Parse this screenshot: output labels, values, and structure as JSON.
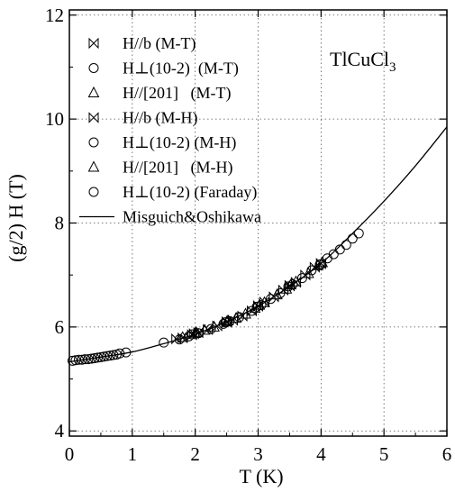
{
  "chart_data": {
    "type": "scatter",
    "title": "",
    "annotation": "TlCuCl3",
    "annotation_parts": {
      "base": "TlCuCl",
      "sub": "3"
    },
    "xlabel": "T (K)",
    "ylabel": "(g/2) H (T)",
    "xlim": [
      0,
      6
    ],
    "ylim": [
      3.9,
      12.1
    ],
    "x_ticks": [
      "0",
      "1",
      "2",
      "3",
      "4",
      "5",
      "6"
    ],
    "y_ticks": [
      "4",
      "6",
      "8",
      "10",
      "12"
    ],
    "grid": "dotted",
    "legend_position": "top-left",
    "series": [
      {
        "name": "H//b (M-T)",
        "marker": "bowtie",
        "points": [
          [
            1.7,
            5.77
          ],
          [
            1.8,
            5.79
          ],
          [
            1.95,
            5.85
          ],
          [
            2.05,
            5.89
          ],
          [
            2.2,
            5.95
          ],
          [
            2.35,
            6.02
          ],
          [
            2.5,
            6.09
          ],
          [
            2.6,
            6.13
          ],
          [
            2.75,
            6.21
          ],
          [
            2.9,
            6.31
          ],
          [
            3.0,
            6.4
          ],
          [
            3.1,
            6.48
          ],
          [
            3.25,
            6.58
          ],
          [
            3.4,
            6.71
          ],
          [
            3.5,
            6.8
          ],
          [
            3.6,
            6.86
          ],
          [
            3.75,
            7.0
          ],
          [
            3.9,
            7.15
          ],
          [
            4.0,
            7.22
          ]
        ]
      },
      {
        "name": "H⊥(10-2)  (M-T)",
        "marker": "circle",
        "points": [
          [
            1.75,
            5.76
          ],
          [
            1.9,
            5.82
          ],
          [
            2.05,
            5.88
          ],
          [
            2.25,
            5.96
          ],
          [
            2.45,
            6.06
          ],
          [
            2.55,
            6.11
          ],
          [
            2.7,
            6.19
          ],
          [
            2.9,
            6.31
          ],
          [
            3.05,
            6.42
          ],
          [
            3.2,
            6.54
          ],
          [
            3.35,
            6.65
          ],
          [
            3.55,
            6.82
          ],
          [
            3.7,
            6.94
          ],
          [
            3.85,
            7.09
          ],
          [
            4.0,
            7.21
          ]
        ]
      },
      {
        "name": "H//[201]   (M-T)",
        "marker": "triangle",
        "points": [
          [
            1.8,
            5.8
          ],
          [
            2.0,
            5.88
          ],
          [
            2.15,
            5.94
          ],
          [
            2.3,
            6.0
          ],
          [
            2.5,
            6.1
          ],
          [
            2.65,
            6.17
          ],
          [
            2.8,
            6.25
          ],
          [
            2.95,
            6.36
          ],
          [
            3.1,
            6.47
          ],
          [
            3.3,
            6.62
          ],
          [
            3.45,
            6.73
          ],
          [
            3.6,
            6.87
          ],
          [
            3.8,
            7.03
          ],
          [
            3.95,
            7.18
          ]
        ]
      },
      {
        "name": "H//b (M-H)",
        "marker": "bowtie",
        "points": [
          [
            1.98,
            5.87
          ],
          [
            2.5,
            6.1
          ],
          [
            3.0,
            6.41
          ],
          [
            3.5,
            6.79
          ],
          [
            4.0,
            7.22
          ]
        ]
      },
      {
        "name": "H⊥(10-2) (M-H)",
        "marker": "circle",
        "points": [
          [
            1.95,
            5.86
          ],
          [
            2.48,
            6.09
          ],
          [
            2.98,
            6.39
          ],
          [
            3.48,
            6.78
          ],
          [
            3.98,
            7.2
          ]
        ]
      },
      {
        "name": "H//[201]   (M-H)",
        "marker": "triangle",
        "points": [
          [
            2.02,
            5.89
          ],
          [
            2.52,
            6.12
          ],
          [
            3.02,
            6.42
          ],
          [
            3.52,
            6.81
          ],
          [
            4.02,
            7.24
          ]
        ]
      },
      {
        "name": "H⊥(10-2) (Faraday)",
        "marker": "circle",
        "points": [
          [
            0.05,
            5.35
          ],
          [
            0.1,
            5.36
          ],
          [
            0.15,
            5.37
          ],
          [
            0.2,
            5.37
          ],
          [
            0.25,
            5.38
          ],
          [
            0.3,
            5.38
          ],
          [
            0.35,
            5.39
          ],
          [
            0.4,
            5.4
          ],
          [
            0.45,
            5.41
          ],
          [
            0.5,
            5.42
          ],
          [
            0.55,
            5.43
          ],
          [
            0.6,
            5.44
          ],
          [
            0.65,
            5.45
          ],
          [
            0.7,
            5.46
          ],
          [
            0.75,
            5.47
          ],
          [
            0.8,
            5.49
          ],
          [
            0.9,
            5.51
          ],
          [
            1.5,
            5.7
          ],
          [
            4.1,
            7.32
          ],
          [
            4.2,
            7.4
          ],
          [
            4.3,
            7.49
          ],
          [
            4.4,
            7.58
          ],
          [
            4.5,
            7.7
          ],
          [
            4.6,
            7.8
          ]
        ]
      },
      {
        "name": "Misguich&Oshikawa",
        "marker": "line",
        "curve": [
          [
            0,
            5.33
          ],
          [
            0.5,
            5.42
          ],
          [
            1,
            5.52
          ],
          [
            1.5,
            5.68
          ],
          [
            2,
            5.86
          ],
          [
            2.5,
            6.1
          ],
          [
            3,
            6.4
          ],
          [
            3.5,
            6.78
          ],
          [
            4,
            7.22
          ],
          [
            4.5,
            7.8
          ],
          [
            5,
            8.42
          ],
          [
            5.5,
            9.1
          ],
          [
            6,
            9.85
          ]
        ]
      }
    ]
  }
}
